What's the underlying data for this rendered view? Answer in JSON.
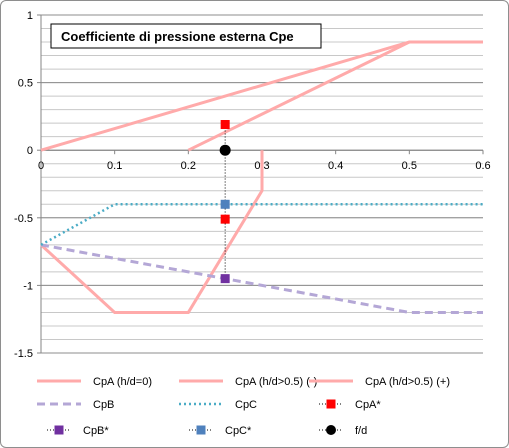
{
  "chart_data": {
    "type": "line",
    "title": "Coefficiente di pressione esterna Cpe",
    "xlabel": "",
    "ylabel": "",
    "xlim": [
      0,
      0.6
    ],
    "ylim": [
      -1.5,
      1
    ],
    "x_ticks": [
      0,
      0.1,
      0.2,
      0.3,
      0.4,
      0.5,
      0.6
    ],
    "y_ticks": [
      -1.5,
      -1,
      -0.5,
      0,
      0.5,
      1
    ],
    "x_tick_labels": [
      "0",
      "0.1",
      "0.2",
      "0.3",
      "0.4",
      "0.5",
      "0.6"
    ],
    "y_tick_labels": [
      "-1.5",
      "-1",
      "-0.5",
      "0",
      "0.5",
      "1"
    ],
    "grid": "horizontal",
    "minor_grid_step": 0.1,
    "legend_position": "bottom",
    "series": [
      {
        "name": "CpA (h/d=0)",
        "style": "solid",
        "color": "#ffaaaa",
        "x": [
          0,
          0.5,
          0.6
        ],
        "y": [
          0,
          0.8,
          0.8
        ]
      },
      {
        "name": "CpA (h/d>0.5) (-)",
        "style": "solid",
        "color": "#ffaaaa",
        "x": [
          0,
          0.05,
          0.1,
          0.2,
          0.3,
          0.3
        ],
        "y": [
          -0.7,
          -0.95,
          -1.2,
          -1.2,
          -0.3,
          0
        ]
      },
      {
        "name": "CpA (h/d>0.5) (+)",
        "style": "solid",
        "color": "#ffaaaa",
        "x": [
          0.2,
          0.5
        ],
        "y": [
          0,
          0.8
        ]
      },
      {
        "name": "CpB",
        "style": "dashed",
        "color": "#b4a7d6",
        "x": [
          0,
          0.1,
          0.2,
          0.3,
          0.4,
          0.5,
          0.6
        ],
        "y": [
          -0.7,
          -0.8,
          -0.9,
          -1.0,
          -1.1,
          -1.2,
          -1.2
        ]
      },
      {
        "name": "CpC",
        "style": "dotted",
        "color": "#4bacc6",
        "x": [
          0,
          0.1,
          0.6
        ],
        "y": [
          -0.7,
          -0.4,
          -0.4
        ]
      },
      {
        "name": "CpA*",
        "style": "marker-square-dotted",
        "color": "#ff0000",
        "x": [
          0.25,
          0.25
        ],
        "y": [
          0.19,
          -0.51
        ]
      },
      {
        "name": "CpB*",
        "style": "marker-square-dotted",
        "color": "#7030a0",
        "x": [
          0.25
        ],
        "y": [
          -0.95
        ]
      },
      {
        "name": "CpC*",
        "style": "marker-square-dotted",
        "color": "#4f81bd",
        "x": [
          0.25
        ],
        "y": [
          -0.4
        ]
      },
      {
        "name": "f/d",
        "style": "marker-circle",
        "color": "#000000",
        "x": [
          0.25
        ],
        "y": [
          0
        ]
      }
    ],
    "guide_line": {
      "x": 0.25,
      "y_from": 0.19,
      "y_to": -0.95
    }
  }
}
